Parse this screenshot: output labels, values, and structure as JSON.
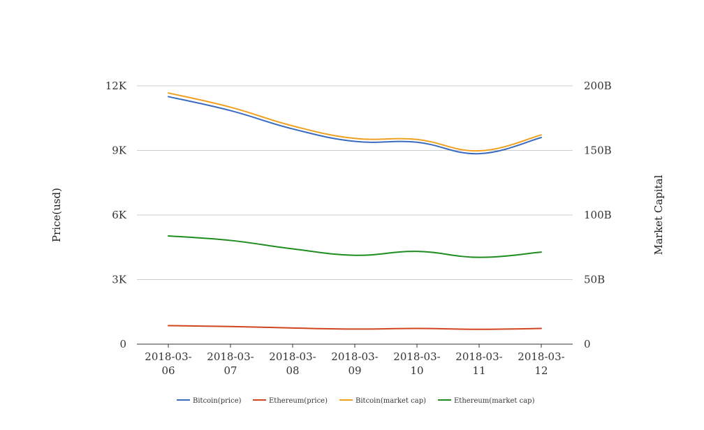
{
  "chart_data": {
    "type": "line",
    "title": "",
    "x": [
      "2018-03-06",
      "2018-03-07",
      "2018-03-08",
      "2018-03-09",
      "2018-03-10",
      "2018-03-11",
      "2018-03-12"
    ],
    "x_tick_lines": [
      [
        "2018-03-",
        "06"
      ],
      [
        "2018-03-",
        "07"
      ],
      [
        "2018-03-",
        "08"
      ],
      [
        "2018-03-",
        "09"
      ],
      [
        "2018-03-",
        "10"
      ],
      [
        "2018-03-",
        "11"
      ],
      [
        "2018-03-",
        "12"
      ]
    ],
    "ylabel": "Price(usd)",
    "y2label": "Market Capital",
    "ylim": [
      0,
      12000
    ],
    "y2lim": [
      0,
      200000000000
    ],
    "y_ticks": [
      0,
      3000,
      6000,
      9000,
      12000
    ],
    "y_tick_labels": [
      "0",
      "3K",
      "6K",
      "9K",
      "12K"
    ],
    "y2_ticks": [
      0,
      50000000000,
      100000000000,
      150000000000,
      200000000000
    ],
    "y2_tick_labels": [
      "0",
      "50B",
      "100B",
      "150B",
      "200B"
    ],
    "grid": true,
    "legend_position": "bottom",
    "series": [
      {
        "name": "Bitcoin(price)",
        "axis": "left",
        "color": "#3a6bbf",
        "values": [
          11500,
          10850,
          10000,
          9420,
          9380,
          8850,
          9600
        ]
      },
      {
        "name": "Ethereum(price)",
        "axis": "left",
        "color": "#d2451e",
        "values": [
          860,
          820,
          750,
          700,
          730,
          690,
          730
        ]
      },
      {
        "name": "Bitcoin(market cap)",
        "axis": "right",
        "color": "#f0a020",
        "values": [
          194500000000,
          183500000000,
          169000000000,
          159300000000,
          158500000000,
          149700000000,
          162000000000
        ]
      },
      {
        "name": "Ethereum(market cap)",
        "axis": "right",
        "color": "#1e8c1e",
        "values": [
          83800000000,
          80300000000,
          73800000000,
          68800000000,
          71800000000,
          67200000000,
          71300000000
        ]
      }
    ]
  }
}
